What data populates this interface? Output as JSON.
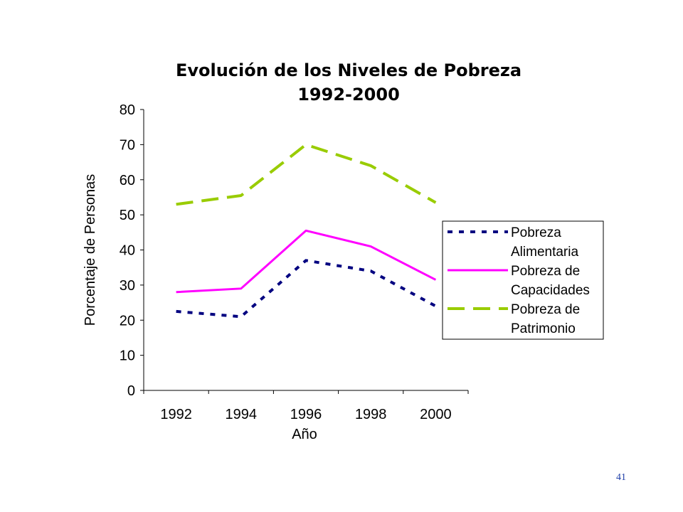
{
  "chart_data": {
    "type": "line",
    "title": "Evolución de los Niveles de Pobreza",
    "subtitle": "1992-2000",
    "xlabel": "Año",
    "ylabel": "Porcentaje de Personas",
    "categories": [
      "1992",
      "1994",
      "1996",
      "1998",
      "2000"
    ],
    "ylim": [
      0,
      80
    ],
    "yticks": [
      "0",
      "10",
      "20",
      "30",
      "40",
      "50",
      "60",
      "70",
      "80"
    ],
    "grid": false,
    "legend_position": "right",
    "series": [
      {
        "name_lines": [
          "Pobreza",
          "Alimentaria"
        ],
        "values": [
          22.5,
          21,
          37,
          34,
          24
        ],
        "color": "#000080",
        "style": "dotted"
      },
      {
        "name_lines": [
          "Pobreza de",
          "Capacidades"
        ],
        "values": [
          28,
          29,
          45.5,
          41,
          31.5
        ],
        "color": "#ff00ff",
        "style": "solid"
      },
      {
        "name_lines": [
          "Pobreza de",
          "Patrimonio"
        ],
        "values": [
          53,
          55.5,
          70,
          64,
          53.5
        ],
        "color": "#99cc00",
        "style": "dashed"
      }
    ]
  },
  "page_number": "41"
}
